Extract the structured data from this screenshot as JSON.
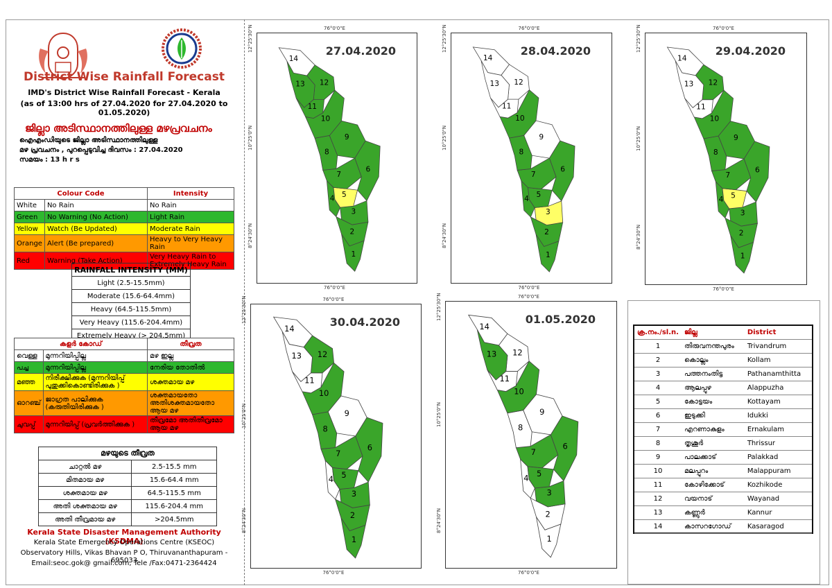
{
  "header": {
    "title": "District Wise Rainfall Forecast",
    "subtitle": "IMD's District Wise Rainfall Forecast - Kerala",
    "as_of": "(as of 13:00 hrs of 27.04.2020  for 27.04.2020  to 01.05.2020)",
    "ml_title": "ജില്ലാ അടിസ്ഥാനത്തിലുള്ള മഴപ്രവചനം",
    "ml_line1": "ഐഎംഡിയുടെ ജില്ലാ   അടിസ്ഥാനത്തിലുള്ള",
    "ml_line2": "മഴ പ്രവചനം  , പുറപ്പെടുവിച്ച     ദിവസം : 27.04.2020",
    "ml_line3": "സമയം :  13  h r s"
  },
  "colour_code": {
    "headers": [
      "Colour Code",
      "Intensity"
    ],
    "rows": [
      {
        "colour": "White",
        "code": "No Rain",
        "intensity": "No Rain",
        "bg": "#ffffff"
      },
      {
        "colour": "Green",
        "code": "No Warning (No Action)",
        "intensity": "Light Rain",
        "bg": "#2eb82e"
      },
      {
        "colour": "Yellow",
        "code": "Watch (Be Updated)",
        "intensity": "Moderate Rain",
        "bg": "#ffff00"
      },
      {
        "colour": "Orange",
        "code": "Alert (Be prepared)",
        "intensity": "Heavy to Very Heavy Rain",
        "bg": "#ff9900"
      },
      {
        "colour": "Red",
        "code": "Warning (Take Action)",
        "intensity": "Very Heavy Rain to Extremely Heavy Rain",
        "bg": "#ff0000"
      }
    ]
  },
  "rainfall_intensity": {
    "title": "RAINFALL INTENSITY (MM)",
    "rows": [
      "Light (2.5-15.5mm)",
      "Moderate (15.6-64.4mm)",
      "Heavy (64.5-115.5mm)",
      "Very Heavy (115.6-204.4mm)",
      "Extremely Heavy (> 204.5mm)"
    ]
  },
  "colour_code_ml": {
    "headers": [
      "കളർ കോഡ്",
      "തീവ്രത"
    ],
    "rows": [
      {
        "colour": "വെള്ള",
        "code": "മുന്നറിയിപ്പില്ല",
        "intensity": "മഴ ഇല്ല",
        "bg": "#ffffff"
      },
      {
        "colour": "പച്ച",
        "code": "മുന്നറിയിപ്പില്ല",
        "intensity": "നേരിയ തോതിൽ",
        "bg": "#2eb82e"
      },
      {
        "colour": "മഞ്ഞ",
        "code": "നിരീക്ഷിക്കുക (മുന്നറിയിപ്പ് പുതുക്കികൊണ്ടിരിക്കുക )",
        "intensity": "ശക്തമായ മഴ",
        "bg": "#ffff00"
      },
      {
        "colour": "ഓറഞ്ച്",
        "code": "ജാഗ്രത പാലിക്കുക (കരുതിയിരിക്കുക )",
        "intensity": "ശക്തമായതോ അതിശക്തമായതോ ആയ മഴ",
        "bg": "#ff9900"
      },
      {
        "colour": "ചുവപ്പ്",
        "code": "മുന്നറിയിപ്പ് (പ്രവർത്തിക്കുക )",
        "intensity": "തീവ്രമോ അതിതീവ്രമോ ആയ മഴ",
        "bg": "#ff0000"
      }
    ]
  },
  "intensity_ml": {
    "title": "മഴയുടെ തീവ്രത",
    "rows": [
      {
        "label": "ചാറ്റൽ മഴ",
        "value": "2.5-15.5 mm"
      },
      {
        "label": "മിതമായ മഴ",
        "value": "15.6-64.4 mm"
      },
      {
        "label": "ശക്തമായ മഴ",
        "value": "64.5-115.5 mm"
      },
      {
        "label": "അതി ശക്തമായ മഴ",
        "value": "115.6-204.4 mm"
      },
      {
        "label": "അതി തീവ്രമായ മഴ",
        "value": ">204.5mm"
      }
    ]
  },
  "footer": {
    "org": "Kerala State Disaster Management Authority (KSDMA)",
    "centre": "Kerala State Emergency Operations Centre (KSEOC)",
    "address": "Observatory Hills, Vikas Bhavan P O, Thiruvananthapuram - 695033",
    "contact": "Email:seoc.gok@ gmail.com, Tele /Fax:0471-2364424"
  },
  "maps": [
    {
      "date": "27.04.2020",
      "colors": {
        "1": "#3aa52a",
        "2": "#3aa52a",
        "3": "#3aa52a",
        "4": "#3aa52a",
        "5": "#ffff66",
        "6": "#3aa52a",
        "7": "#3aa52a",
        "8": "#3aa52a",
        "9": "#3aa52a",
        "10": "#3aa52a",
        "11": "#3aa52a",
        "12": "#3aa52a",
        "13": "#3aa52a",
        "14": "#ffffff"
      }
    },
    {
      "date": "28.04.2020",
      "colors": {
        "1": "#3aa52a",
        "2": "#3aa52a",
        "3": "#ffff66",
        "4": "#3aa52a",
        "5": "#3aa52a",
        "6": "#3aa52a",
        "7": "#3aa52a",
        "8": "#3aa52a",
        "9": "#ffffff",
        "10": "#3aa52a",
        "11": "#ffffff",
        "12": "#ffffff",
        "13": "#ffffff",
        "14": "#ffffff"
      }
    },
    {
      "date": "29.04.2020",
      "colors": {
        "1": "#3aa52a",
        "2": "#3aa52a",
        "3": "#3aa52a",
        "4": "#3aa52a",
        "5": "#ffff66",
        "6": "#3aa52a",
        "7": "#3aa52a",
        "8": "#3aa52a",
        "9": "#3aa52a",
        "10": "#3aa52a",
        "11": "#ffffff",
        "12": "#3aa52a",
        "13": "#ffffff",
        "14": "#ffffff"
      }
    },
    {
      "date": "30.04.2020",
      "colors": {
        "1": "#3aa52a",
        "2": "#3aa52a",
        "3": "#3aa52a",
        "4": "#ffffff",
        "5": "#3aa52a",
        "6": "#3aa52a",
        "7": "#3aa52a",
        "8": "#3aa52a",
        "9": "#ffffff",
        "10": "#3aa52a",
        "11": "#ffffff",
        "12": "#3aa52a",
        "13": "#ffffff",
        "14": "#ffffff"
      }
    },
    {
      "date": "01.05.2020",
      "colors": {
        "1": "#ffffff",
        "2": "#ffffff",
        "3": "#3aa52a",
        "4": "#ffffff",
        "5": "#3aa52a",
        "6": "#3aa52a",
        "7": "#3aa52a",
        "8": "#ffffff",
        "9": "#ffffff",
        "10": "#3aa52a",
        "11": "#ffffff",
        "12": "#ffffff",
        "13": "#3aa52a",
        "14": "#ffffff"
      }
    }
  ],
  "map_labels": {
    "lon_top": "76°0'0\"E",
    "lon_bottom": "76°0'0\"E",
    "lat1": "12°25'30\"N",
    "lat2": "10°25'0\"N",
    "lat3": "8°24'30\"N"
  },
  "district_table": {
    "headers": [
      "ക്ര.നം./sl.n.",
      "ജില്ല",
      "District"
    ],
    "rows": [
      {
        "n": "1",
        "ml": "തിരുവനന്തപുരം",
        "en": "Trivandrum"
      },
      {
        "n": "2",
        "ml": "കൊല്ലം",
        "en": "Kollam"
      },
      {
        "n": "3",
        "ml": "പത്തനംതിട്ട",
        "en": "Pathanamthitta"
      },
      {
        "n": "4",
        "ml": "ആലപ്പുഴ",
        "en": "Alappuzha"
      },
      {
        "n": "5",
        "ml": "കോട്ടയം",
        "en": "Kottayam"
      },
      {
        "n": "6",
        "ml": "ഇടുക്കി",
        "en": "Idukki"
      },
      {
        "n": "7",
        "ml": "എറണാകുളം",
        "en": "Ernakulam"
      },
      {
        "n": "8",
        "ml": "തൃശൂർ",
        "en": "Thrissur"
      },
      {
        "n": "9",
        "ml": "പാലക്കാട്",
        "en": "Palakkad"
      },
      {
        "n": "10",
        "ml": "മലപ്പുറം",
        "en": "Malappuram"
      },
      {
        "n": "11",
        "ml": "കോഴിക്കോട്",
        "en": "Kozhikode"
      },
      {
        "n": "12",
        "ml": "വയനാട്",
        "en": "Wayanad"
      },
      {
        "n": "13",
        "ml": "കണ്ണൂർ",
        "en": "Kannur"
      },
      {
        "n": "14",
        "ml": "കാസറഗോഡ്",
        "en": "Kasaragod"
      }
    ]
  }
}
